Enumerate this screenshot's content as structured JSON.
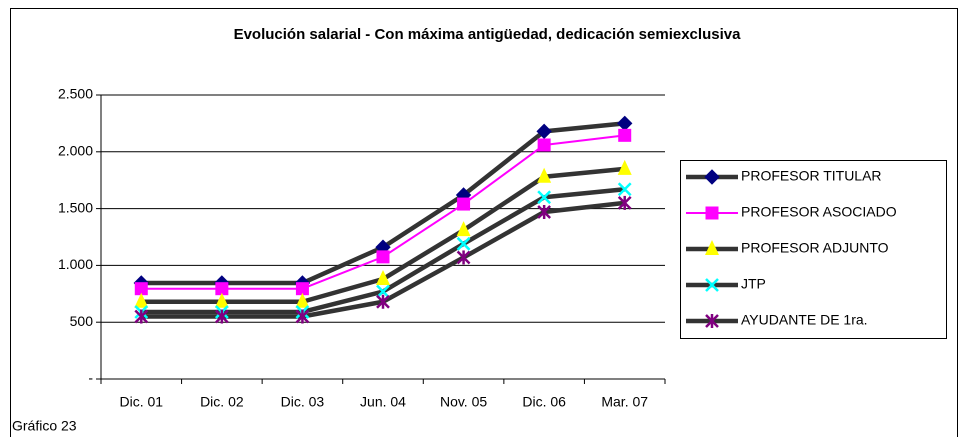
{
  "chart_data": {
    "type": "line",
    "title": "Evolución salarial - Con máxima antigüedad, dedicación semiexclusiva",
    "caption": "Gráfico 23",
    "categories": [
      "Dic. 01",
      "Dic. 02",
      "Dic. 03",
      "Jun. 04",
      "Nov. 05",
      "Dic. 06",
      "Mar. 07"
    ],
    "ylim": [
      0,
      2500
    ],
    "yticks": [
      {
        "value": 0,
        "label": "-"
      },
      500,
      {
        "value": 1000,
        "label": "1.000"
      },
      {
        "value": 1500,
        "label": "1.500"
      },
      {
        "value": 2000,
        "label": "2.000"
      },
      {
        "value": 2500,
        "label": "2.500"
      }
    ],
    "grid": true,
    "legend": "right",
    "series": [
      {
        "name": "PROFESOR TITULAR",
        "color": "#000080",
        "line_color": "#333333",
        "marker": "diamond",
        "values": [
          845,
          845,
          845,
          1160,
          1620,
          2180,
          2250
        ]
      },
      {
        "name": "PROFESOR ASOCIADO",
        "color": "#ff00ff",
        "line_color": "#ff00ff",
        "marker": "square",
        "values": [
          795,
          795,
          795,
          1075,
          1540,
          2060,
          2145
        ]
      },
      {
        "name": "PROFESOR ADJUNTO",
        "color": "#ffff00",
        "line_color": "#333333",
        "marker": "triangle",
        "values": [
          680,
          680,
          680,
          880,
          1310,
          1780,
          1850
        ]
      },
      {
        "name": "JTP",
        "color": "#00ffff",
        "line_color": "#333333",
        "marker": "x",
        "values": [
          590,
          590,
          590,
          770,
          1190,
          1600,
          1670
        ]
      },
      {
        "name": "AYUDANTE DE 1ra.",
        "color": "#800080",
        "line_color": "#333333",
        "marker": "asterisk",
        "values": [
          550,
          550,
          550,
          680,
          1070,
          1470,
          1550
        ]
      }
    ]
  }
}
